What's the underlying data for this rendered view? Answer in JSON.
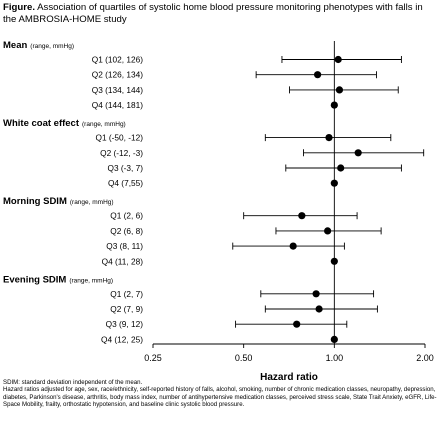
{
  "figure": {
    "label": "Figure.",
    "title": "Association of quartiles of systolic home blood pressure monitoring phenotypes with falls in the AMBROSIA-HOME study"
  },
  "footnotes": {
    "line1": "SDIM: standard deviation independent of the mean.",
    "line2": "Hazard ratios adjusted for age, sex, race/ethnicity, self-reported history of falls, alcohol, smoking, number of chronic medication classes, neuropathy, depression, diabetes, Parkinson's disease, arthritis, body mass index, number of antihypertensive medication classes, perceived stress scale, State Trait Anxiety, eGFR, Life-Space Mobility, frailty, orthostatic hypotension, and baseline clinic systolic blood pressure."
  },
  "chart_data": {
    "type": "forest",
    "xlabel": "Hazard ratio",
    "xscale": "log",
    "xlim": [
      0.25,
      2.0
    ],
    "xticks": [
      0.25,
      0.5,
      1.0,
      2.0
    ],
    "xtick_labels": [
      "0.25",
      "0.50",
      "1.00",
      "2.00"
    ],
    "reference_line": 1.0,
    "grid": false,
    "groups": [
      {
        "name": "Mean",
        "range_note": "(range, mmHg)",
        "rows": [
          {
            "label": "Q1 (102, 126)",
            "hr": 1.03,
            "lo": 0.67,
            "hi": 1.67
          },
          {
            "label": "Q2 (126, 134)",
            "hr": 0.88,
            "lo": 0.55,
            "hi": 1.38
          },
          {
            "label": "Q3 (134, 144)",
            "hr": 1.04,
            "lo": 0.71,
            "hi": 1.63
          },
          {
            "label": "Q4 (144, 181)",
            "hr": 1.0,
            "reference": true
          }
        ]
      },
      {
        "name": "White coat effect",
        "range_note": "(range, mmHg)",
        "rows": [
          {
            "label": "Q1 (-50, -12)",
            "hr": 0.96,
            "lo": 0.59,
            "hi": 1.54
          },
          {
            "label": "Q2 (-12, -3)",
            "hr": 1.2,
            "lo": 0.79,
            "hi": 1.98
          },
          {
            "label": "Q3 (-3, 7)",
            "hr": 1.05,
            "lo": 0.69,
            "hi": 1.67
          },
          {
            "label": "Q4 (7,55)",
            "hr": 1.0,
            "reference": true
          }
        ]
      },
      {
        "name": "Morning SDIM",
        "range_note": "(range, mmHg)",
        "rows": [
          {
            "label": "Q1 (2, 6)",
            "hr": 0.78,
            "lo": 0.5,
            "hi": 1.19
          },
          {
            "label": "Q2 (6, 8)",
            "hr": 0.95,
            "lo": 0.64,
            "hi": 1.43
          },
          {
            "label": "Q3 (8, 11)",
            "hr": 0.73,
            "lo": 0.46,
            "hi": 1.08
          },
          {
            "label": "Q4 (11, 28)",
            "hr": 1.0,
            "reference": true
          }
        ]
      },
      {
        "name": "Evening SDIM",
        "range_note": "(range, mmHg)",
        "rows": [
          {
            "label": "Q1 (2, 7)",
            "hr": 0.87,
            "lo": 0.57,
            "hi": 1.35
          },
          {
            "label": "Q2 (7, 9)",
            "hr": 0.89,
            "lo": 0.59,
            "hi": 1.39
          },
          {
            "label": "Q3 (9, 12)",
            "hr": 0.75,
            "lo": 0.47,
            "hi": 1.1
          },
          {
            "label": "Q4 (12, 25)",
            "hr": 1.0,
            "reference": true
          }
        ]
      }
    ]
  }
}
